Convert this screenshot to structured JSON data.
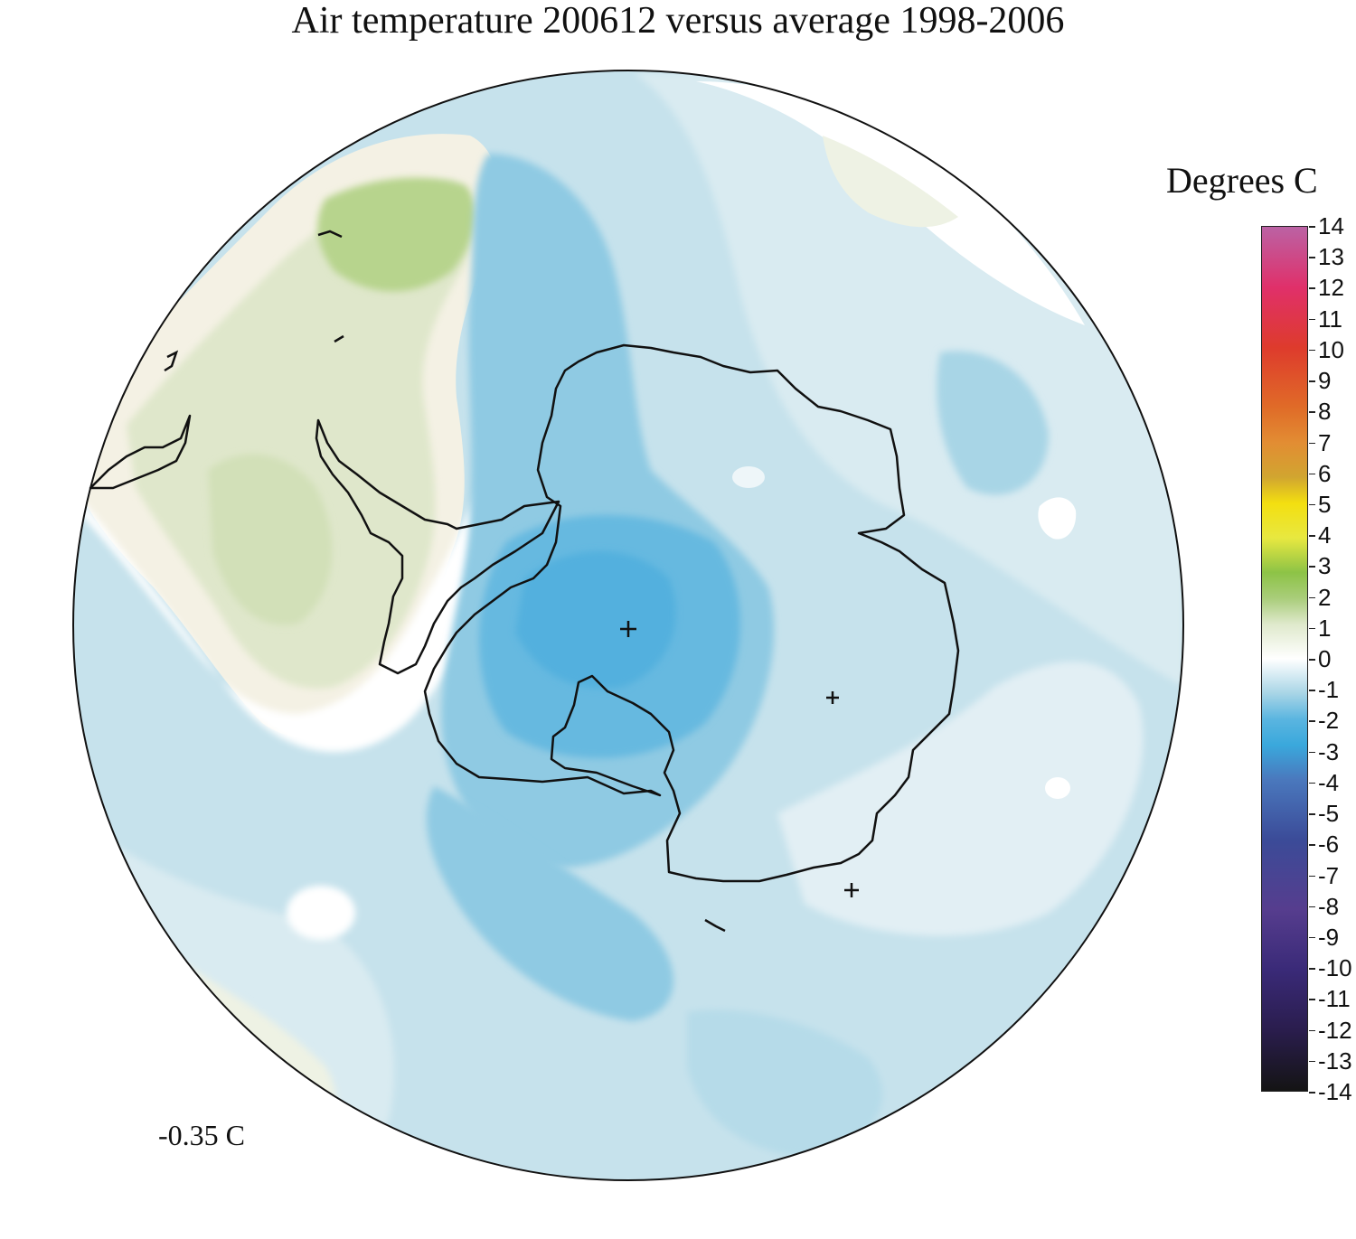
{
  "title": "Air temperature 200612 versus average 1998-2006",
  "legend": {
    "title": "Degrees C",
    "ticks": [
      "14",
      "13",
      "12",
      "11",
      "10",
      "9",
      "8",
      "7",
      "6",
      "5",
      "4",
      "3",
      "2",
      "1",
      "0",
      "-1",
      "-2",
      "-3",
      "-4",
      "-5",
      "-6",
      "-7",
      "-8",
      "-9",
      "-10",
      "-11",
      "-12",
      "-13",
      "-14"
    ],
    "range": [
      -14,
      14
    ],
    "colors": {
      "neg14": "#141414",
      "neg12": "#2a1d4d",
      "neg10": "#3a2a78",
      "neg8": "#563d8e",
      "neg6": "#3b4b98",
      "neg4": "#4a78bd",
      "neg3": "#3aa8dc",
      "neg2": "#5ab5e0",
      "neg1": "#a8d5e6",
      "zero": "#ffffff",
      "pos1": "#dfe9cc",
      "pos2": "#a9cd7a",
      "pos3": "#8dc346",
      "pos4": "#e8e840",
      "pos5": "#f3df10",
      "pos6": "#d1a530",
      "pos7": "#e28d33",
      "pos8": "#e06c28",
      "pos10": "#de3b2c",
      "pos12": "#e0306a",
      "pos14": "#bb62a4"
    }
  },
  "map": {
    "projection": "south polar stereographic",
    "markers": [
      "+",
      "+",
      "+"
    ]
  },
  "mean_anomaly": "-0.35 C"
}
